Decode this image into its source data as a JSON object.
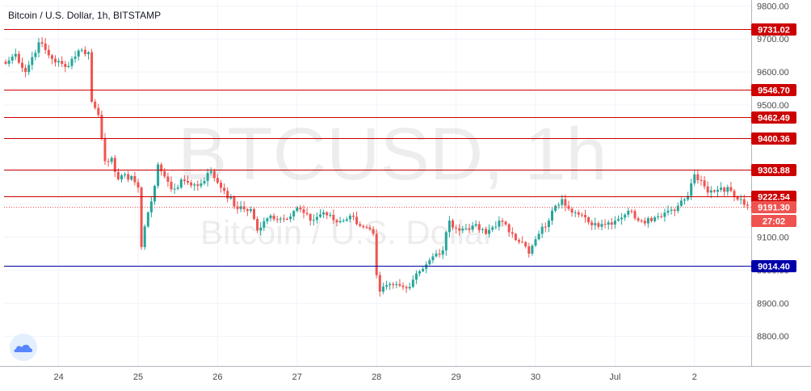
{
  "chart_data": {
    "type": "candlestick",
    "title": "Bitcoin / U.S. Dollar, 1h, BITSTAMP",
    "watermark_symbol": "BTCUSD, 1h",
    "watermark_name": "Bitcoin / U.S. Dollar",
    "x_tick_labels": [
      "24",
      "25",
      "26",
      "27",
      "28",
      "29",
      "30",
      "Jul",
      "2"
    ],
    "x_tick_index": [
      16,
      40,
      64,
      88,
      112,
      136,
      160,
      184,
      208
    ],
    "y_ticks": [
      8800,
      8900,
      9000,
      9100,
      9200,
      9300,
      9400,
      9500,
      9600,
      9700,
      9800
    ],
    "y_tick_labels": [
      "8800.00",
      "8900.00",
      "9000.00",
      "9100.00",
      "9200.00",
      "9300.00",
      "9400.00",
      "9500.00",
      "9600.00",
      "9700.00",
      "9800.00"
    ],
    "ylim": [
      8710,
      9818
    ],
    "grid": true,
    "candle_count": 225,
    "levels": [
      {
        "value": 9731.02,
        "label": "9731.02",
        "color": "#cc0000"
      },
      {
        "value": 9546.7,
        "label": "9546.70",
        "color": "#cc0000"
      },
      {
        "value": 9462.49,
        "label": "9462.49",
        "color": "#cc0000"
      },
      {
        "value": 9400.36,
        "label": "9400.36",
        "color": "#cc0000"
      },
      {
        "value": 9303.88,
        "label": "9303.88",
        "color": "#cc0000"
      },
      {
        "value": 9222.54,
        "label": "9222.54",
        "color": "#cc0000"
      },
      {
        "value": 9014.4,
        "label": "9014.40",
        "color": "#0000aa"
      }
    ],
    "last_price": {
      "value": 9191.3,
      "label": "9191.30",
      "countdown": "27:02",
      "color": "#ef5350"
    },
    "key_prices": [
      [
        0,
        9625
      ],
      [
        3,
        9655
      ],
      [
        6,
        9600
      ],
      [
        10,
        9690
      ],
      [
        14,
        9640
      ],
      [
        18,
        9615
      ],
      [
        22,
        9665
      ],
      [
        25,
        9660
      ],
      [
        26,
        9510
      ],
      [
        28,
        9470
      ],
      [
        30,
        9330
      ],
      [
        32,
        9340
      ],
      [
        34,
        9275
      ],
      [
        38,
        9285
      ],
      [
        40,
        9250
      ],
      [
        41,
        9070
      ],
      [
        43,
        9175
      ],
      [
        45,
        9255
      ],
      [
        46,
        9320
      ],
      [
        50,
        9245
      ],
      [
        54,
        9270
      ],
      [
        58,
        9255
      ],
      [
        62,
        9300
      ],
      [
        64,
        9265
      ],
      [
        66,
        9240
      ],
      [
        70,
        9185
      ],
      [
        74,
        9185
      ],
      [
        76,
        9120
      ],
      [
        80,
        9165
      ],
      [
        84,
        9155
      ],
      [
        88,
        9190
      ],
      [
        92,
        9150
      ],
      [
        96,
        9175
      ],
      [
        100,
        9145
      ],
      [
        104,
        9165
      ],
      [
        108,
        9130
      ],
      [
        111,
        9110
      ],
      [
        112,
        8985
      ],
      [
        113,
        8935
      ],
      [
        117,
        8955
      ],
      [
        121,
        8945
      ],
      [
        124,
        8990
      ],
      [
        128,
        9030
      ],
      [
        132,
        9060
      ],
      [
        134,
        9150
      ],
      [
        137,
        9120
      ],
      [
        141,
        9135
      ],
      [
        145,
        9110
      ],
      [
        149,
        9150
      ],
      [
        153,
        9110
      ],
      [
        156,
        9085
      ],
      [
        158,
        9050
      ],
      [
        161,
        9110
      ],
      [
        164,
        9150
      ],
      [
        166,
        9195
      ],
      [
        168,
        9215
      ],
      [
        172,
        9175
      ],
      [
        176,
        9145
      ],
      [
        180,
        9140
      ],
      [
        184,
        9150
      ],
      [
        188,
        9180
      ],
      [
        192,
        9150
      ],
      [
        196,
        9160
      ],
      [
        200,
        9180
      ],
      [
        203,
        9195
      ],
      [
        206,
        9225
      ],
      [
        208,
        9290
      ],
      [
        212,
        9235
      ],
      [
        216,
        9250
      ],
      [
        219,
        9240
      ],
      [
        222,
        9215
      ],
      [
        224,
        9195
      ]
    ]
  },
  "colors": {
    "up": "#26a69a",
    "down": "#ef5350",
    "grid": "#f0f3fa",
    "axis_text": "#4a4a4a",
    "title": "#131722",
    "background": "#ffffff"
  },
  "logo": {
    "icon": "tradingview-cloud-icon"
  }
}
